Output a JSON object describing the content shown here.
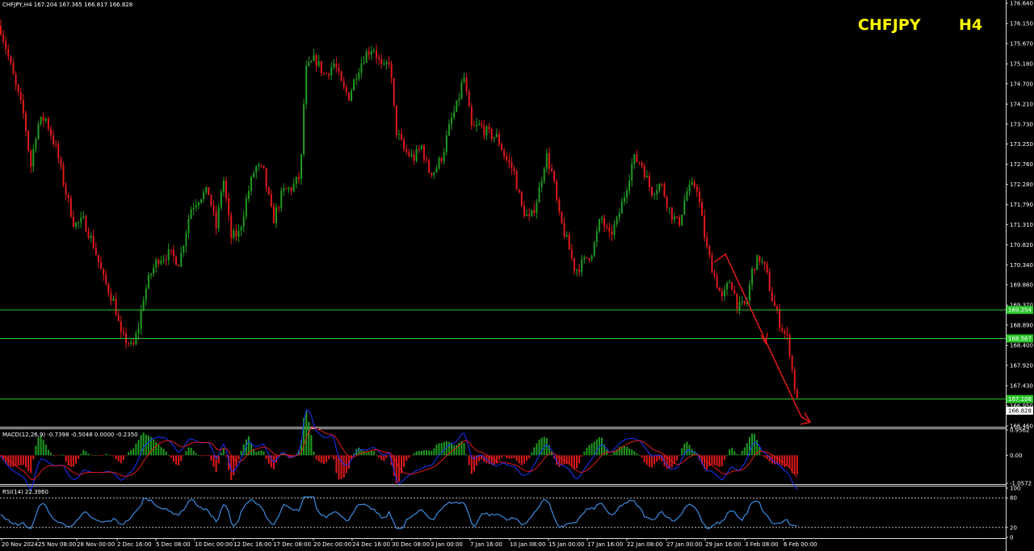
{
  "header": {
    "info": "CHFJPY,H4  167.204 167.365 166.817 166.828",
    "symbol": "CHFJPY",
    "timeframe": "H4"
  },
  "colors": {
    "background": "#000000",
    "bull": "#1f9b1f",
    "bear": "#e01a1a",
    "level_line": "#2bc62b",
    "arrow": "#e01a1a",
    "macd_line": "#1a33ff",
    "signal_line": "#e01a1a",
    "rsi_line": "#3c8be0",
    "title": "#ffff00"
  },
  "chart_data": [
    {
      "type": "candlestick",
      "title": "CHFJPY,H4",
      "ylim": [
        166.46,
        176.64
      ],
      "y_ticks": [
        "176.640",
        "176.150",
        "175.670",
        "175.180",
        "174.700",
        "174.210",
        "173.730",
        "173.250",
        "172.760",
        "172.280",
        "171.790",
        "171.310",
        "170.820",
        "170.340",
        "169.860",
        "169.370",
        "168.890",
        "168.400",
        "167.920",
        "167.430",
        "166.950",
        "166.460"
      ],
      "x_ticks": [
        "20 Nov 2024",
        "25 Nov 08:00",
        "28 Nov 00:00",
        "2 Dec 16:00",
        "5 Dec 08:00",
        "10 Dec 00:00",
        "12 Dec 16:00",
        "17 Dec 08:00",
        "20 Dec 00:00",
        "24 Dec 16:00",
        "30 Dec 08:00",
        "3 Jan 00:00",
        "7 Jan 16:00",
        "10 Jan 08:00",
        "15 Jan 00:00",
        "17 Jan 16:00",
        "22 Jan 08:00",
        "27 Jan 00:00",
        "29 Jan 16:00",
        "3 Feb 08:00",
        "6 Feb 00:00"
      ],
      "price_path": [
        [
          0,
          176.1
        ],
        [
          7,
          175.6
        ],
        [
          20,
          174.6
        ],
        [
          30,
          173.9
        ],
        [
          38,
          172.7
        ],
        [
          46,
          173.7
        ],
        [
          56,
          173.9
        ],
        [
          70,
          173.1
        ],
        [
          80,
          172.2
        ],
        [
          92,
          171.3
        ],
        [
          104,
          171.4
        ],
        [
          116,
          170.8
        ],
        [
          128,
          170.0
        ],
        [
          142,
          169.4
        ],
        [
          150,
          168.6
        ],
        [
          158,
          168.5
        ],
        [
          164,
          168.3
        ],
        [
          172,
          168.9
        ],
        [
          178,
          169.6
        ],
        [
          186,
          170.1
        ],
        [
          196,
          170.5
        ],
        [
          210,
          170.6
        ],
        [
          222,
          170.4
        ],
        [
          236,
          171.7
        ],
        [
          248,
          172.0
        ],
        [
          258,
          172.1
        ],
        [
          268,
          171.2
        ],
        [
          276,
          172.5
        ],
        [
          286,
          171.0
        ],
        [
          296,
          171.1
        ],
        [
          306,
          172.0
        ],
        [
          316,
          172.7
        ],
        [
          326,
          172.6
        ],
        [
          338,
          171.4
        ],
        [
          350,
          172.1
        ],
        [
          362,
          172.2
        ],
        [
          372,
          172.5
        ],
        [
          378,
          175.0
        ],
        [
          390,
          175.3
        ],
        [
          402,
          174.9
        ],
        [
          414,
          175.2
        ],
        [
          424,
          174.6
        ],
        [
          432,
          174.4
        ],
        [
          442,
          175.0
        ],
        [
          452,
          175.4
        ],
        [
          462,
          175.6
        ],
        [
          474,
          175.0
        ],
        [
          482,
          175.3
        ],
        [
          490,
          173.6
        ],
        [
          500,
          173.1
        ],
        [
          512,
          172.9
        ],
        [
          522,
          173.2
        ],
        [
          530,
          172.6
        ],
        [
          538,
          172.6
        ],
        [
          548,
          173.0
        ],
        [
          558,
          173.8
        ],
        [
          566,
          174.2
        ],
        [
          574,
          174.9
        ],
        [
          584,
          173.6
        ],
        [
          594,
          173.7
        ],
        [
          604,
          173.5
        ],
        [
          616,
          173.4
        ],
        [
          626,
          172.9
        ],
        [
          636,
          172.6
        ],
        [
          646,
          171.7
        ],
        [
          656,
          171.4
        ],
        [
          666,
          172.0
        ],
        [
          676,
          173.0
        ],
        [
          684,
          172.5
        ],
        [
          692,
          171.5
        ],
        [
          702,
          170.9
        ],
        [
          712,
          170.2
        ],
        [
          722,
          170.4
        ],
        [
          734,
          170.7
        ],
        [
          744,
          171.5
        ],
        [
          754,
          171.0
        ],
        [
          764,
          171.4
        ],
        [
          774,
          172.1
        ],
        [
          784,
          172.9
        ],
        [
          794,
          172.8
        ],
        [
          806,
          172.1
        ],
        [
          818,
          172.3
        ],
        [
          830,
          171.6
        ],
        [
          840,
          171.3
        ],
        [
          850,
          172.1
        ],
        [
          862,
          172.3
        ],
        [
          874,
          170.8
        ],
        [
          884,
          170.1
        ],
        [
          894,
          169.5
        ],
        [
          904,
          170.0
        ],
        [
          914,
          169.3
        ],
        [
          924,
          169.4
        ],
        [
          932,
          170.3
        ],
        [
          940,
          170.5
        ],
        [
          948,
          170.2
        ],
        [
          956,
          169.5
        ],
        [
          966,
          168.9
        ],
        [
          976,
          168.5
        ],
        [
          982,
          167.6
        ],
        [
          988,
          166.9
        ]
      ],
      "levels": [
        {
          "price": 169.254,
          "label": "169.254"
        },
        {
          "price": 168.567,
          "label": "168.567"
        },
        {
          "price": 167.108,
          "label": "167.108"
        }
      ],
      "current": {
        "price": 166.828,
        "label": "166.828"
      },
      "annotation": "red arrow indicating downward move toward 167.108 and below"
    },
    {
      "type": "bar",
      "title": "MACD(12,26,9) -0.7398 -0.5048 0.0000 -0.2350",
      "ylim": [
        -1.0572,
        0.9562
      ],
      "y_ticks": [
        "0.9562",
        "0.00",
        "-1.0572"
      ]
    },
    {
      "type": "line",
      "title": "RSI(14) 22.3960",
      "ylim": [
        0,
        100
      ],
      "y_ticks": [
        "100",
        "80",
        "20",
        "0"
      ],
      "levels": [
        80,
        20
      ]
    }
  ]
}
